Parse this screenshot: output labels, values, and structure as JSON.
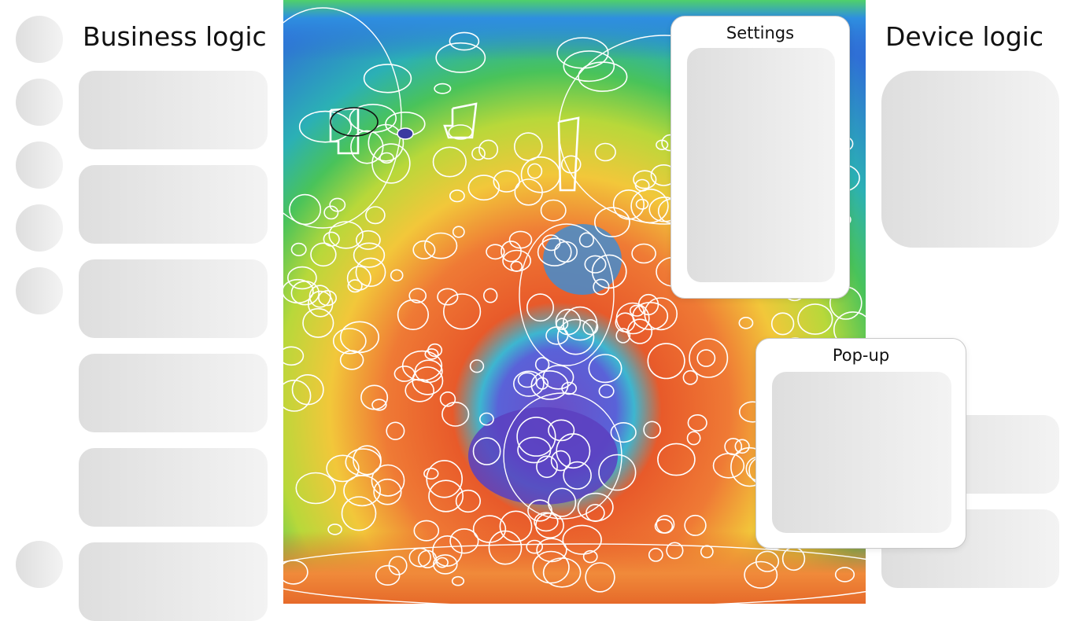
{
  "left_column": {
    "title": "Business logic"
  },
  "right_column": {
    "title": "Device logic"
  },
  "settings_panel": {
    "title": "Settings"
  },
  "popup_panel": {
    "title": "Pop-up"
  },
  "map": {
    "description_icon": "topographic-crater-map"
  }
}
